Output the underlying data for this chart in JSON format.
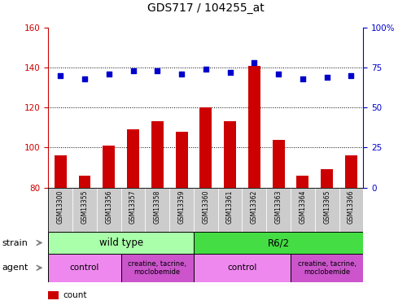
{
  "title": "GDS717 / 104255_at",
  "samples": [
    "GSM13300",
    "GSM13355",
    "GSM13356",
    "GSM13357",
    "GSM13358",
    "GSM13359",
    "GSM13360",
    "GSM13361",
    "GSM13362",
    "GSM13363",
    "GSM13364",
    "GSM13365",
    "GSM13366"
  ],
  "counts": [
    96,
    86,
    101,
    109,
    113,
    108,
    120,
    113,
    141,
    104,
    86,
    89,
    96
  ],
  "percentiles": [
    70,
    68,
    71,
    73,
    73,
    71,
    74,
    72,
    78,
    71,
    68,
    69,
    70
  ],
  "ylim_left": [
    80,
    160
  ],
  "ylim_right": [
    0,
    100
  ],
  "yticks_left": [
    80,
    100,
    120,
    140,
    160
  ],
  "yticks_right": [
    0,
    25,
    50,
    75,
    100
  ],
  "bar_color": "#cc0000",
  "dot_color": "#0000cc",
  "bar_width": 0.5,
  "left_axis_color": "#cc0000",
  "right_axis_color": "#0000cc",
  "strain_wt_color": "#aaffaa",
  "strain_r62_color": "#44dd44",
  "agent_ctrl_color": "#ee88ee",
  "agent_drug_color": "#cc55cc",
  "sample_box_color": "#cccccc",
  "gridline_color": "#888888"
}
